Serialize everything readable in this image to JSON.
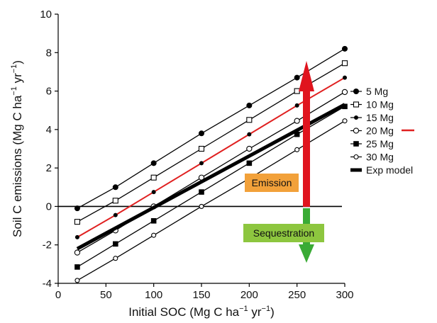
{
  "chart_data": {
    "type": "line",
    "xlabel_main": "Initial SOC (Mg C ha",
    "xlabel_sup": "−1",
    "xlabel_mid": " yr",
    "xlabel_sup2": "−1",
    "xlabel_end": ")",
    "ylabel_main": "Soil C emissions (Mg C ha",
    "ylabel_sup": "−1",
    "ylabel_mid": " yr",
    "ylabel_sup2": "−1",
    "ylabel_end": ")",
    "xlim": [
      0,
      300
    ],
    "ylim": [
      -4,
      10
    ],
    "xticks": [
      "0",
      "50",
      "100",
      "150",
      "200",
      "250",
      "300"
    ],
    "yticks": [
      "-4",
      "-2",
      "0",
      "2",
      "4",
      "6",
      "8",
      "10"
    ],
    "x": [
      20,
      60,
      100,
      150,
      200,
      250,
      300
    ],
    "series": [
      {
        "name": "5 Mg",
        "marker": "filled-circle",
        "color": "#000000",
        "values": [
          -0.1,
          1.0,
          2.25,
          3.8,
          5.25,
          6.7,
          8.2
        ]
      },
      {
        "name": "10 Mg",
        "marker": "open-square",
        "color": "#000000",
        "values": [
          -0.8,
          0.3,
          1.5,
          3.0,
          4.5,
          6.0,
          7.45
        ]
      },
      {
        "name": "15 Mg",
        "marker": "small-dot",
        "color": "#e02020",
        "values": [
          -1.6,
          -0.45,
          0.75,
          2.25,
          3.75,
          5.25,
          6.7
        ]
      },
      {
        "name": "20 Mg",
        "marker": "open-circle",
        "color": "#000000",
        "values": [
          -2.4,
          -1.25,
          0.0,
          1.5,
          3.0,
          4.45,
          5.95
        ]
      },
      {
        "name": "25 Mg",
        "marker": "filled-square",
        "color": "#000000",
        "values": [
          -3.15,
          -1.95,
          -0.75,
          0.75,
          2.25,
          3.75,
          5.2
        ]
      },
      {
        "name": "30 Mg",
        "marker": "open-circle-small",
        "color": "#000000",
        "values": [
          -3.85,
          -2.7,
          -1.5,
          0.0,
          1.45,
          2.95,
          4.45
        ]
      }
    ],
    "exp_model": {
      "name": "Exp model",
      "x": [
        20,
        300
      ],
      "values": [
        -2.2,
        5.3
      ]
    },
    "zero_line": 0,
    "annotations": {
      "emission": {
        "label": "Emission",
        "color": "#f2a13a",
        "arrow_color": "#e0141e"
      },
      "sequestration": {
        "label": "Sequestration",
        "color": "#8dc63f",
        "arrow_color": "#3aab35"
      }
    },
    "legend_position": "right"
  }
}
